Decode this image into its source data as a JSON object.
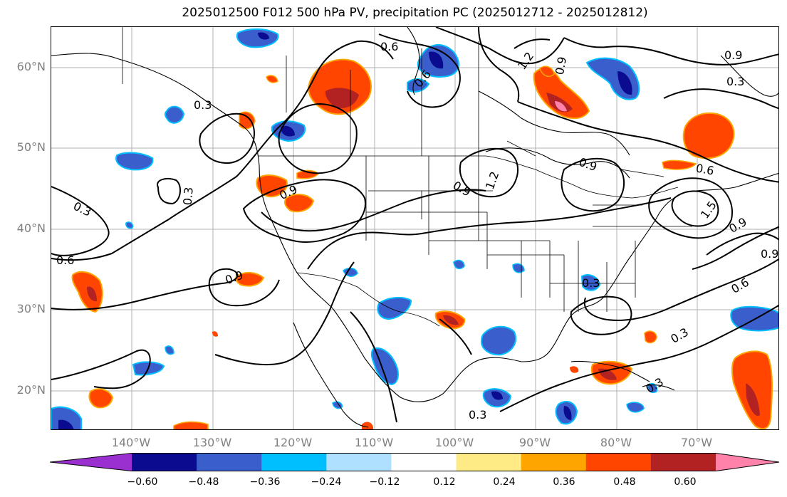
{
  "title": "2025012500 F012 500 hPa PV, precipitation PC (2025012712 - 2025012812)",
  "map": {
    "projection": "latitude-longitude",
    "grid": true,
    "lat_labels": [
      "60°N",
      "50°N",
      "40°N",
      "30°N",
      "20°N"
    ],
    "lon_labels": [
      "140°W",
      "130°W",
      "120°W",
      "110°W",
      "100°W",
      "90°W",
      "80°W",
      "70°W"
    ],
    "pv_contour_labels": [
      "0.6",
      "1.2",
      "0.9",
      "0.9",
      "0.3",
      "0.3",
      "0.3",
      "0.3",
      "0.6",
      "0.9",
      "0.9",
      "0.6",
      "1.2",
      "0.9",
      "0.9",
      "1.5",
      "0.9",
      "0.9",
      "0.6",
      "0.6",
      "0.3",
      "0.3",
      "0.3",
      "0.3"
    ],
    "precip_field": {
      "negative_colors": [
        "#0b0b8f",
        "#3a5fcd",
        "#00bfff",
        "#b0e0ff"
      ],
      "positive_colors": [
        "#ffeb85",
        "#ffa500",
        "#ff4500",
        "#b22222",
        "#ff82ab"
      ]
    }
  },
  "colorbar": {
    "tick_labels": [
      "−0.60",
      "−0.48",
      "−0.36",
      "−0.24",
      "−0.12",
      "0.12",
      "0.24",
      "0.36",
      "0.48",
      "0.60"
    ],
    "colors": [
      "#9b30d0",
      "#0b0b8f",
      "#3a5fcd",
      "#00bfff",
      "#b0e0ff",
      "#ffffff",
      "#ffeb85",
      "#ffa500",
      "#ff4500",
      "#b22222",
      "#ff82ab"
    ],
    "extend": "both"
  }
}
